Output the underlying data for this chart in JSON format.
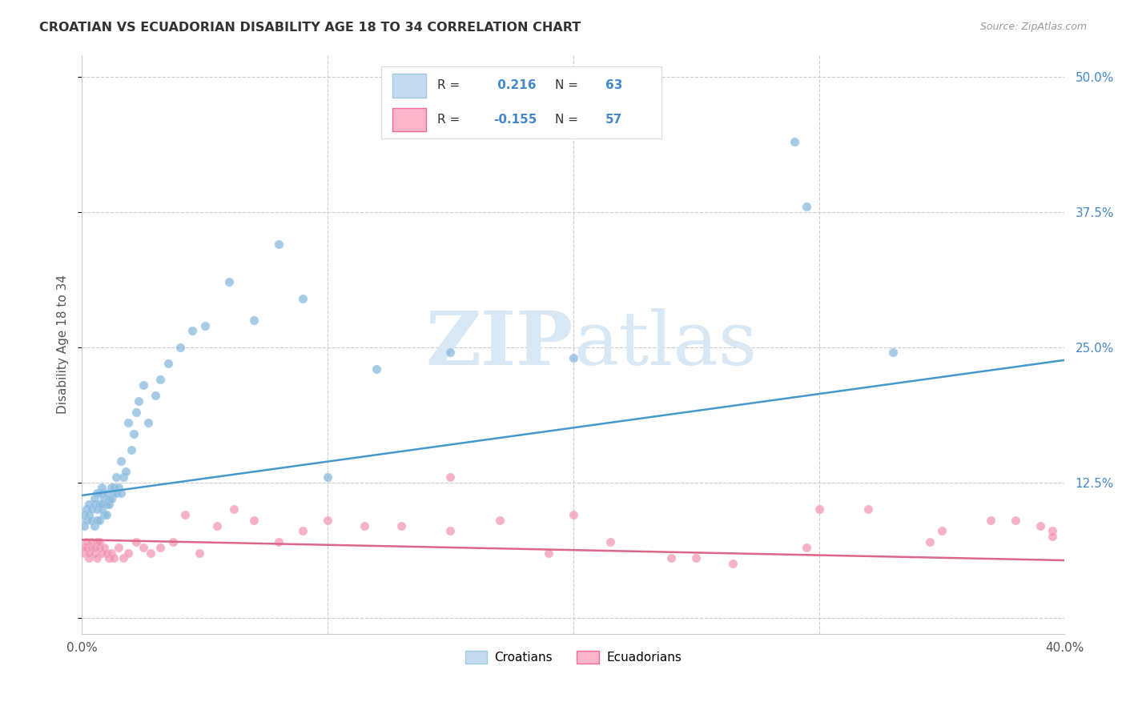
{
  "title": "CROATIAN VS ECUADORIAN DISABILITY AGE 18 TO 34 CORRELATION CHART",
  "source": "Source: ZipAtlas.com",
  "ylabel": "Disability Age 18 to 34",
  "xlim": [
    0.0,
    0.4
  ],
  "ylim": [
    -0.015,
    0.52
  ],
  "croatian_R": 0.216,
  "croatian_N": 63,
  "ecuadorian_R": -0.155,
  "ecuadorian_N": 57,
  "blue_scatter_color": "#88bbdd",
  "blue_scatter_edge": "#aaccee",
  "pink_scatter_color": "#f090b0",
  "pink_scatter_edge": "#f8b8cc",
  "blue_line_color": "#4499cc",
  "pink_line_color": "#dd6688",
  "blue_legend_fill": "#c6dbef",
  "blue_legend_edge": "#9ecae1",
  "pink_legend_fill": "#fbb4c9",
  "pink_legend_edge": "#f768a1",
  "background_color": "#ffffff",
  "watermark_color": "#d8e8f5",
  "grid_color": "#cccccc",
  "ytick_color": "#4488cc",
  "label_color": "#555555",
  "title_color": "#333333",
  "source_color": "#999999",
  "yticks": [
    0.0,
    0.125,
    0.25,
    0.375,
    0.5
  ],
  "ytick_labels": [
    "",
    "12.5%",
    "25.0%",
    "37.5%",
    "50.0%"
  ],
  "xticks": [
    0.0,
    0.1,
    0.2,
    0.3,
    0.4
  ],
  "xtick_labels": [
    "0.0%",
    "",
    "",
    "",
    "40.0%"
  ],
  "blue_line_x0": 0.0,
  "blue_line_x1": 0.4,
  "blue_line_y0": 0.113,
  "blue_line_y1": 0.238,
  "pink_line_x0": 0.0,
  "pink_line_x1": 0.4,
  "pink_line_y0": 0.072,
  "pink_line_y1": 0.053,
  "croatians_x": [
    0.001,
    0.001,
    0.002,
    0.002,
    0.003,
    0.003,
    0.004,
    0.004,
    0.005,
    0.005,
    0.005,
    0.006,
    0.006,
    0.006,
    0.007,
    0.007,
    0.007,
    0.008,
    0.008,
    0.008,
    0.008,
    0.009,
    0.009,
    0.01,
    0.01,
    0.01,
    0.011,
    0.011,
    0.012,
    0.012,
    0.013,
    0.013,
    0.014,
    0.014,
    0.015,
    0.016,
    0.016,
    0.017,
    0.018,
    0.019,
    0.02,
    0.021,
    0.022,
    0.023,
    0.025,
    0.027,
    0.03,
    0.032,
    0.035,
    0.04,
    0.045,
    0.05,
    0.06,
    0.07,
    0.08,
    0.09,
    0.1,
    0.12,
    0.15,
    0.2,
    0.29,
    0.295,
    0.33
  ],
  "croatians_y": [
    0.085,
    0.095,
    0.09,
    0.1,
    0.095,
    0.105,
    0.09,
    0.1,
    0.105,
    0.11,
    0.085,
    0.1,
    0.115,
    0.09,
    0.105,
    0.115,
    0.09,
    0.1,
    0.115,
    0.105,
    0.12,
    0.095,
    0.11,
    0.105,
    0.115,
    0.095,
    0.11,
    0.105,
    0.12,
    0.11,
    0.115,
    0.12,
    0.115,
    0.13,
    0.12,
    0.115,
    0.145,
    0.13,
    0.135,
    0.18,
    0.155,
    0.17,
    0.19,
    0.2,
    0.215,
    0.18,
    0.205,
    0.22,
    0.235,
    0.25,
    0.265,
    0.27,
    0.31,
    0.275,
    0.345,
    0.295,
    0.13,
    0.23,
    0.245,
    0.24,
    0.44,
    0.38,
    0.245
  ],
  "ecuadorians_x": [
    0.001,
    0.001,
    0.002,
    0.002,
    0.003,
    0.003,
    0.004,
    0.004,
    0.005,
    0.005,
    0.006,
    0.006,
    0.007,
    0.007,
    0.008,
    0.009,
    0.01,
    0.011,
    0.012,
    0.013,
    0.015,
    0.017,
    0.019,
    0.022,
    0.025,
    0.028,
    0.032,
    0.037,
    0.042,
    0.048,
    0.055,
    0.062,
    0.07,
    0.08,
    0.09,
    0.1,
    0.115,
    0.13,
    0.15,
    0.17,
    0.19,
    0.215,
    0.24,
    0.265,
    0.295,
    0.32,
    0.345,
    0.37,
    0.39,
    0.395,
    0.15,
    0.2,
    0.25,
    0.3,
    0.35,
    0.38,
    0.395
  ],
  "ecuadorians_y": [
    0.06,
    0.065,
    0.065,
    0.07,
    0.055,
    0.06,
    0.065,
    0.07,
    0.06,
    0.065,
    0.07,
    0.055,
    0.065,
    0.07,
    0.06,
    0.065,
    0.06,
    0.055,
    0.06,
    0.055,
    0.065,
    0.055,
    0.06,
    0.07,
    0.065,
    0.06,
    0.065,
    0.07,
    0.095,
    0.06,
    0.085,
    0.1,
    0.09,
    0.07,
    0.08,
    0.09,
    0.085,
    0.085,
    0.08,
    0.09,
    0.06,
    0.07,
    0.055,
    0.05,
    0.065,
    0.1,
    0.07,
    0.09,
    0.085,
    0.08,
    0.13,
    0.095,
    0.055,
    0.1,
    0.08,
    0.09,
    0.075
  ]
}
